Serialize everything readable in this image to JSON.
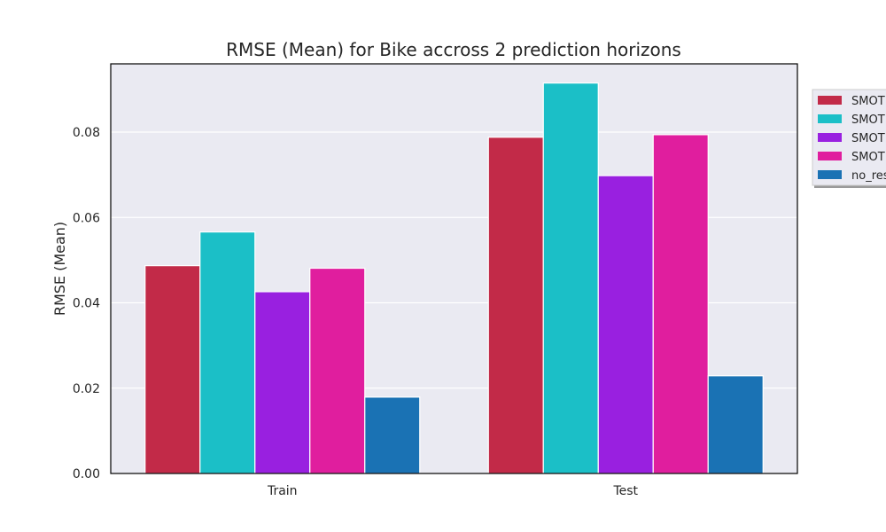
{
  "chart_data": {
    "type": "bar",
    "title": "RMSE (Mean) for Bike accross 2 prediction horizons",
    "xlabel": "",
    "ylabel": "RMSE (Mean)",
    "categories": [
      "Train",
      "Test"
    ],
    "ylim": [
      0,
      0.096
    ],
    "yticks": [
      0.0,
      0.02,
      0.04,
      0.06,
      0.08
    ],
    "ytick_labels": [
      "0.00",
      "0.02",
      "0.04",
      "0.06",
      "0.08"
    ],
    "grid": true,
    "legend_position": "right",
    "series": [
      {
        "name": "SMOT",
        "values": [
          0.0487,
          0.0788
        ],
        "color": "#c22a48"
      },
      {
        "name": "SMOT",
        "values": [
          0.0566,
          0.0915
        ],
        "color": "#1bbfc7"
      },
      {
        "name": "SMOT",
        "values": [
          0.0426,
          0.0698
        ],
        "color": "#9920e0"
      },
      {
        "name": "SMOT",
        "values": [
          0.0481,
          0.0794
        ],
        "color": "#e01e9e"
      },
      {
        "name": "no_res",
        "values": [
          0.0179,
          0.0229
        ],
        "color": "#1a72b4"
      }
    ]
  }
}
